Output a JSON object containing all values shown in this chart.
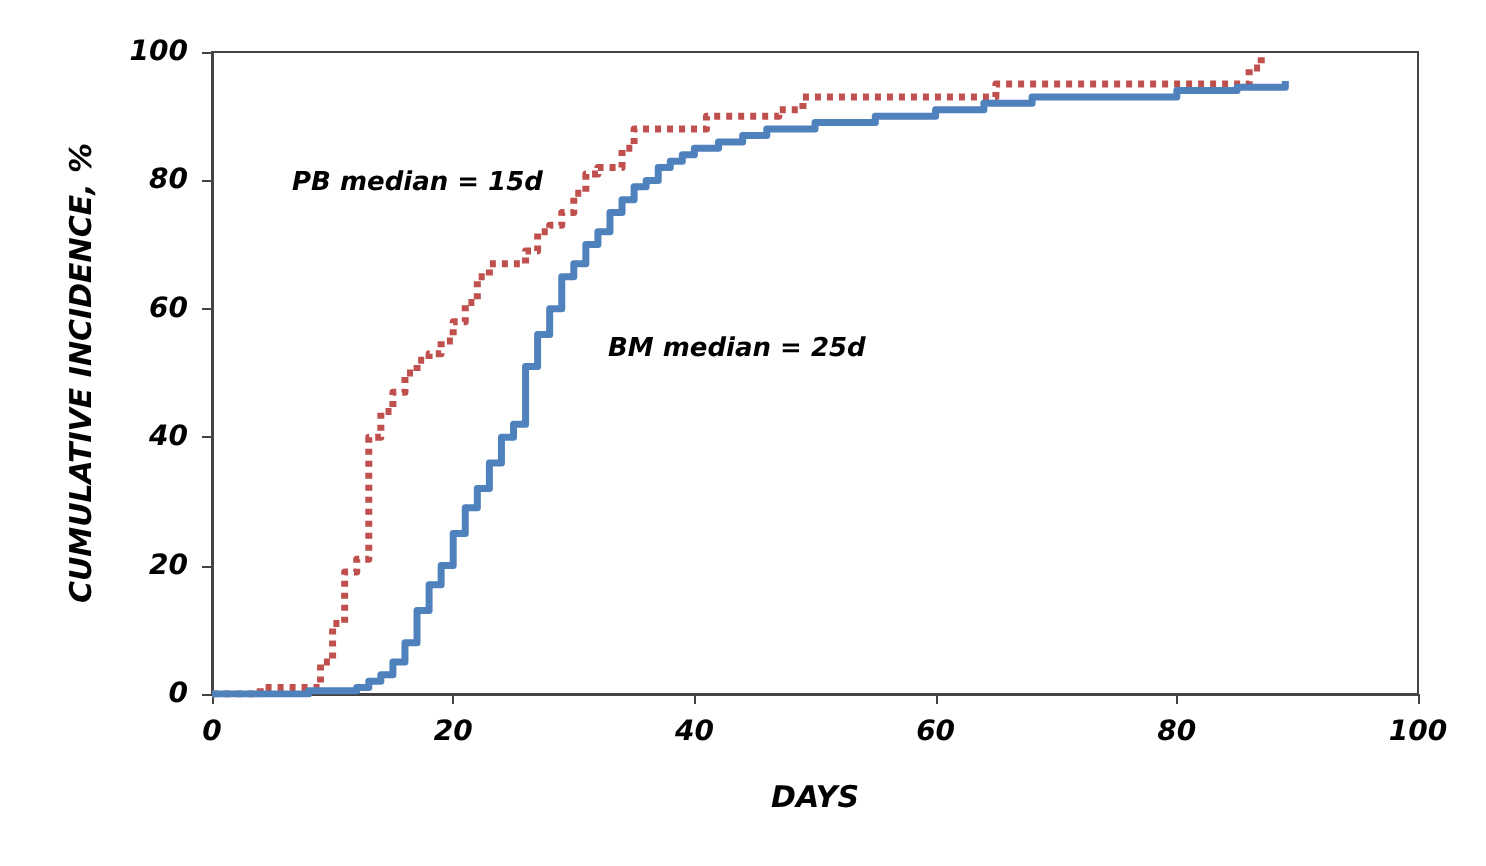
{
  "chart_data": {
    "type": "step",
    "xlabel": "DAYS",
    "ylabel": "CUMULATIVE INCIDENCE, %",
    "xlim": [
      0,
      100
    ],
    "xticks": [
      0,
      20,
      40,
      60,
      80,
      100
    ],
    "ylim": [
      0,
      100
    ],
    "yticks": [
      0,
      20,
      40,
      60,
      80,
      100
    ],
    "grid": false,
    "marker": "none",
    "annotations": [
      "PB median = 15d",
      "BM median = 25d"
    ],
    "series": [
      {
        "color": "#c0504d",
        "line_style": "dotted",
        "x": [
          0,
          4,
          9,
          10,
          11,
          12,
          13,
          14,
          15,
          16,
          17,
          18,
          19,
          20,
          21,
          22,
          23,
          25,
          26,
          27,
          28,
          29,
          30,
          31,
          32,
          34,
          35,
          41,
          47,
          49,
          65,
          86,
          87
        ],
        "values": [
          0,
          1,
          5,
          11,
          19,
          21,
          40,
          44,
          47,
          50,
          52,
          53,
          55,
          58,
          61,
          65,
          67,
          67,
          69,
          72,
          73,
          75,
          78,
          81,
          82,
          85,
          88,
          90,
          91,
          93,
          95,
          97.5,
          100
        ]
      },
      {
        "color": "#4f81bd",
        "line_style": "solid",
        "x": [
          0,
          8,
          12,
          13,
          14,
          15,
          16,
          17,
          18,
          19,
          20,
          21,
          22,
          23,
          24,
          25,
          26,
          27,
          28,
          29,
          30,
          31,
          32,
          33,
          34,
          35,
          36,
          37,
          38,
          39,
          40,
          42,
          44,
          46,
          50,
          55,
          60,
          64,
          68,
          80,
          85,
          89
        ],
        "values": [
          0,
          0.5,
          1,
          2,
          3,
          5,
          8,
          13,
          17,
          20,
          25,
          29,
          32,
          36,
          40,
          42,
          51,
          56,
          60,
          65,
          67,
          70,
          72,
          75,
          77,
          79,
          80,
          82,
          83,
          84,
          85,
          86,
          87,
          88,
          89,
          90,
          91,
          92,
          93,
          94,
          94.5,
          95.5
        ]
      }
    ]
  }
}
